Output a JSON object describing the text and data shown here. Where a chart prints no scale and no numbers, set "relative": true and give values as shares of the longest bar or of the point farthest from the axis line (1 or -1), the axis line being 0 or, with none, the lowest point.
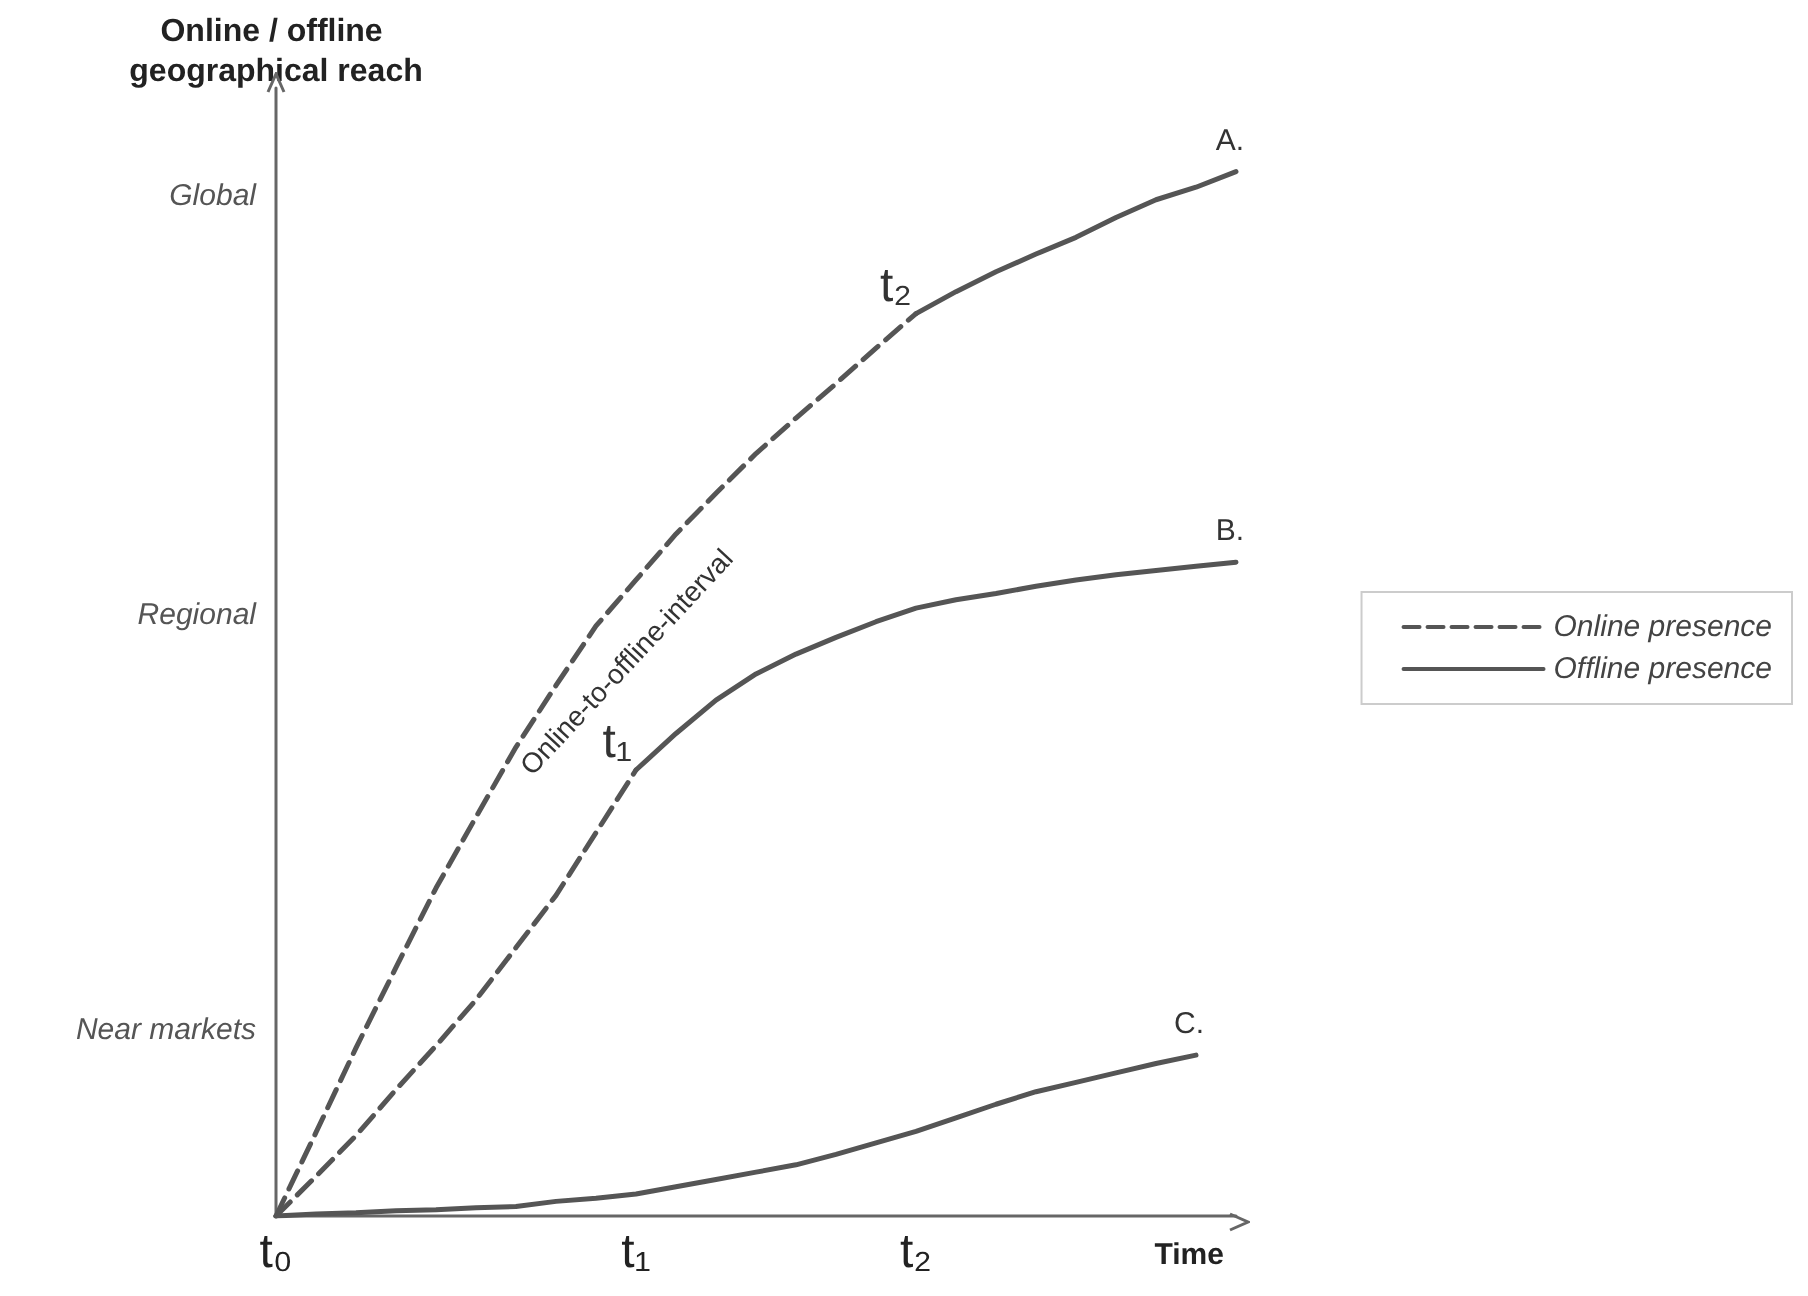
{
  "chart_data": {
    "type": "line",
    "relative": true,
    "xlabel": "Time",
    "ylabel": "Online / offline geographical reach",
    "categories": [
      "t₀",
      null,
      null,
      null,
      null,
      null,
      null,
      null,
      null,
      "t₁",
      null,
      null,
      null,
      null,
      null,
      null,
      "t₂",
      null,
      null,
      null,
      null,
      null,
      null,
      null,
      null
    ],
    "grid": false,
    "legend": "right",
    "marker": "none",
    "series": [
      {
        "name": "Online presence",
        "color": "#555555",
        "line_style": "dashed",
        "values": [
          0,
          0.08,
          0.161,
          0.238,
          0.314,
          0.382,
          0.449,
          0.508,
          0.565,
          0.609,
          0.653,
          0.692,
          0.73,
          0.764,
          0.797,
          0.831,
          0.864,
          null,
          null,
          null,
          null,
          null,
          null,
          null,
          null
        ]
      },
      {
        "name": "Offline presence",
        "color": "#555555",
        "line_style": "solid",
        "values": [
          null,
          null,
          null,
          null,
          null,
          null,
          null,
          null,
          null,
          null,
          null,
          null,
          null,
          null,
          null,
          null,
          0.864,
          0.885,
          0.904,
          0.921,
          0.937,
          0.956,
          0.973,
          0.985,
          1
        ]
      },
      {
        "color": "#555555",
        "line_style": "dashed",
        "values": [
          0,
          0.038,
          0.077,
          0.121,
          0.163,
          0.207,
          0.257,
          0.307,
          0.367,
          0.427,
          null,
          null,
          null,
          null,
          null,
          null,
          null,
          null,
          null,
          null,
          null,
          null,
          null,
          null,
          null
        ]
      },
      {
        "color": "#555555",
        "line_style": "solid",
        "values": [
          null,
          null,
          null,
          null,
          null,
          null,
          null,
          null,
          null,
          0.427,
          0.462,
          0.494,
          0.519,
          0.538,
          0.554,
          0.569,
          0.582,
          0.59,
          0.596,
          0.603,
          0.609,
          0.614,
          0.618,
          0.622,
          0.626
        ]
      },
      {
        "color": "#555555",
        "line_style": "solid",
        "values": [
          0,
          0.002,
          0.003,
          0.005,
          0.006,
          0.008,
          0.009,
          0.014,
          0.017,
          0.021,
          0.028,
          0.035,
          0.042,
          0.049,
          0.059,
          0.07,
          0.081,
          0.094,
          0.107,
          0.119,
          0.128,
          0.137,
          0.146,
          0.154,
          null
        ]
      }
    ],
    "annotations": [
      "Global",
      "Regional",
      "Near markets",
      {
        "text": "A.",
        "y": 1
      },
      {
        "text": "B.",
        "y": 0.626
      },
      {
        "text": "C.",
        "y": 0.154
      },
      {
        "text": "t₂",
        "x": "t₂",
        "y": 0.864
      },
      {
        "text": "t₁",
        "x": "t₁",
        "y": 0.427
      },
      "Online-to-offline-interval"
    ]
  }
}
